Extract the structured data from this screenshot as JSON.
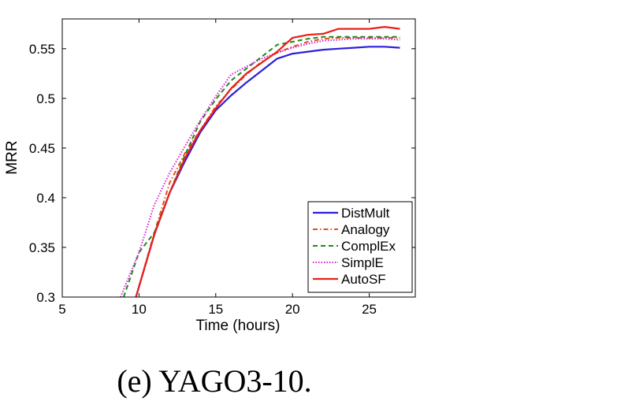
{
  "chart_data": {
    "type": "line",
    "title": "",
    "xlabel": "Time (hours)",
    "ylabel": "MRR",
    "xlim": [
      5,
      28
    ],
    "ylim": [
      0.3,
      0.58
    ],
    "xticks": [
      5,
      10,
      15,
      20,
      25
    ],
    "xtick_labels": [
      "5",
      "10",
      "15",
      "20",
      "25"
    ],
    "yticks": [
      0.3,
      0.35,
      0.4,
      0.45,
      0.5,
      0.55
    ],
    "ytick_labels": [
      "0.3",
      "0.35",
      "0.4",
      "0.45",
      "0.5",
      "0.55"
    ],
    "legend_position": "bottom-right",
    "series": [
      {
        "name": "DistMult",
        "color": "#2b1fd8",
        "style": "solid",
        "x": [
          9.8,
          11,
          12,
          13,
          14,
          15,
          16,
          17,
          18,
          19,
          20,
          21,
          22,
          23,
          24,
          25,
          26,
          27
        ],
        "y": [
          0.3,
          0.363,
          0.405,
          0.437,
          0.466,
          0.488,
          0.503,
          0.516,
          0.528,
          0.54,
          0.545,
          0.547,
          0.549,
          0.55,
          0.551,
          0.552,
          0.552,
          0.551
        ]
      },
      {
        "name": "Analogy",
        "color": "#e2501d",
        "style": "dashdot",
        "x": [
          9.8,
          11,
          12,
          13,
          14,
          15,
          16,
          17,
          18,
          19,
          20,
          21,
          22,
          23,
          24,
          25,
          26,
          27
        ],
        "y": [
          0.3,
          0.365,
          0.415,
          0.445,
          0.468,
          0.492,
          0.509,
          0.524,
          0.537,
          0.546,
          0.552,
          0.557,
          0.56,
          0.561,
          0.561,
          0.561,
          0.561,
          0.561
        ]
      },
      {
        "name": "ComplEx",
        "color": "#1e8a1e",
        "style": "dashed",
        "x": [
          9.0,
          10,
          11,
          12,
          13,
          14,
          15,
          16,
          17,
          18,
          19,
          20,
          21,
          22,
          23,
          24,
          25,
          26,
          27
        ],
        "y": [
          0.3,
          0.345,
          0.365,
          0.405,
          0.443,
          0.477,
          0.499,
          0.518,
          0.53,
          0.542,
          0.554,
          0.557,
          0.56,
          0.562,
          0.562,
          0.562,
          0.562,
          0.562,
          0.562
        ]
      },
      {
        "name": "SimplE",
        "color": "#d81fd8",
        "style": "dotted",
        "x": [
          8.8,
          10,
          11,
          12,
          13,
          14,
          15,
          16,
          17,
          18,
          19,
          20,
          21,
          22,
          23,
          24,
          25,
          26,
          27
        ],
        "y": [
          0.3,
          0.345,
          0.393,
          0.425,
          0.452,
          0.478,
          0.502,
          0.524,
          0.532,
          0.54,
          0.546,
          0.551,
          0.555,
          0.558,
          0.559,
          0.56,
          0.56,
          0.56,
          0.559
        ]
      },
      {
        "name": "AutoSF",
        "color": "#e8201a",
        "style": "solid",
        "x": [
          9.8,
          11,
          12,
          13,
          14,
          15,
          16,
          17,
          18,
          19,
          20,
          21,
          22,
          23,
          24,
          25,
          26,
          27
        ],
        "y": [
          0.3,
          0.363,
          0.405,
          0.44,
          0.468,
          0.49,
          0.51,
          0.525,
          0.536,
          0.547,
          0.561,
          0.564,
          0.565,
          0.57,
          0.57,
          0.57,
          0.572,
          0.57
        ]
      }
    ]
  },
  "caption": "(e)  YAGO3-10."
}
